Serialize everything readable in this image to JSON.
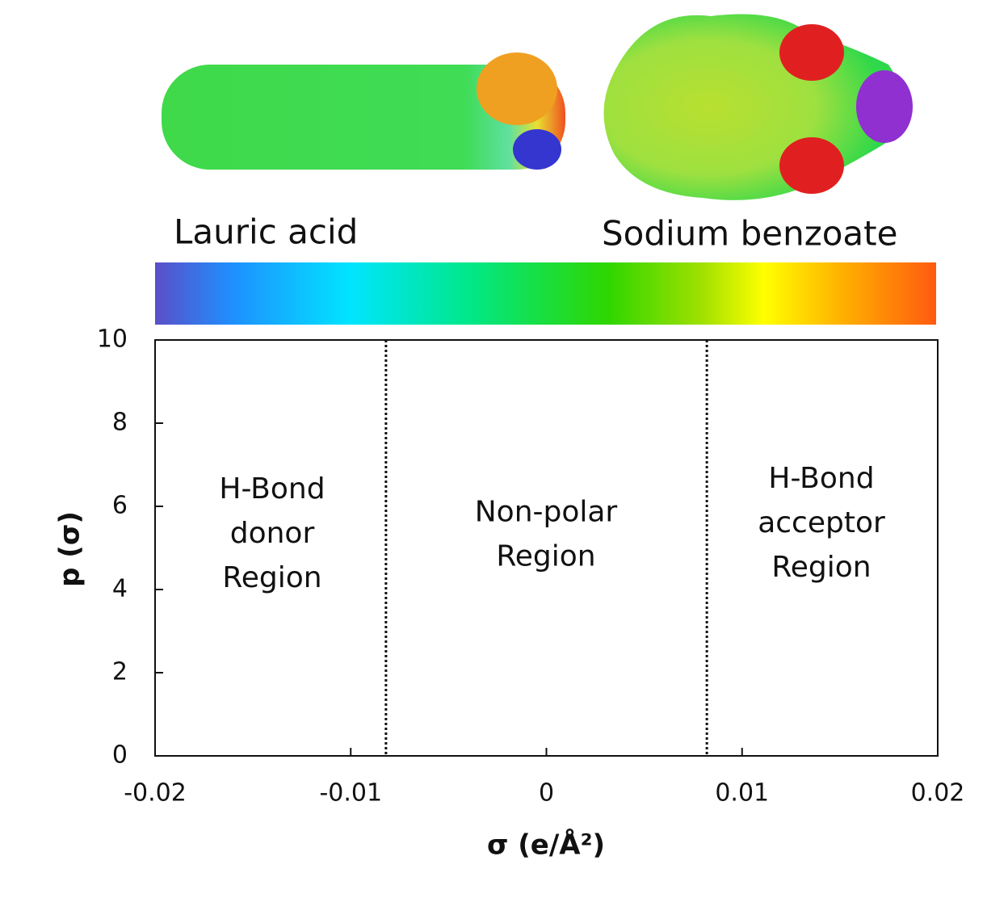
{
  "chart_data": {
    "type": "line",
    "molecule_labels": [
      "Lauric acid",
      "Sodium benzoate"
    ],
    "xlabel": "σ (e/Å²)",
    "ylabel": "p (σ)",
    "xlim": [
      -0.02,
      0.02
    ],
    "xticks": [
      -0.02,
      -0.01,
      0,
      0.01,
      0.02
    ],
    "ylim": [
      0,
      10
    ],
    "yticks": [
      0,
      2,
      4,
      6,
      8,
      10
    ],
    "reference_lines": [
      -0.0082,
      0.0082
    ],
    "annotations": [
      {
        "lines": [
          "H-Bond",
          "donor",
          "Region"
        ]
      },
      {
        "lines": [
          "Non-polar",
          "Region"
        ]
      },
      {
        "lines": [
          "H-Bond",
          "acceptor",
          "Region"
        ]
      }
    ]
  }
}
